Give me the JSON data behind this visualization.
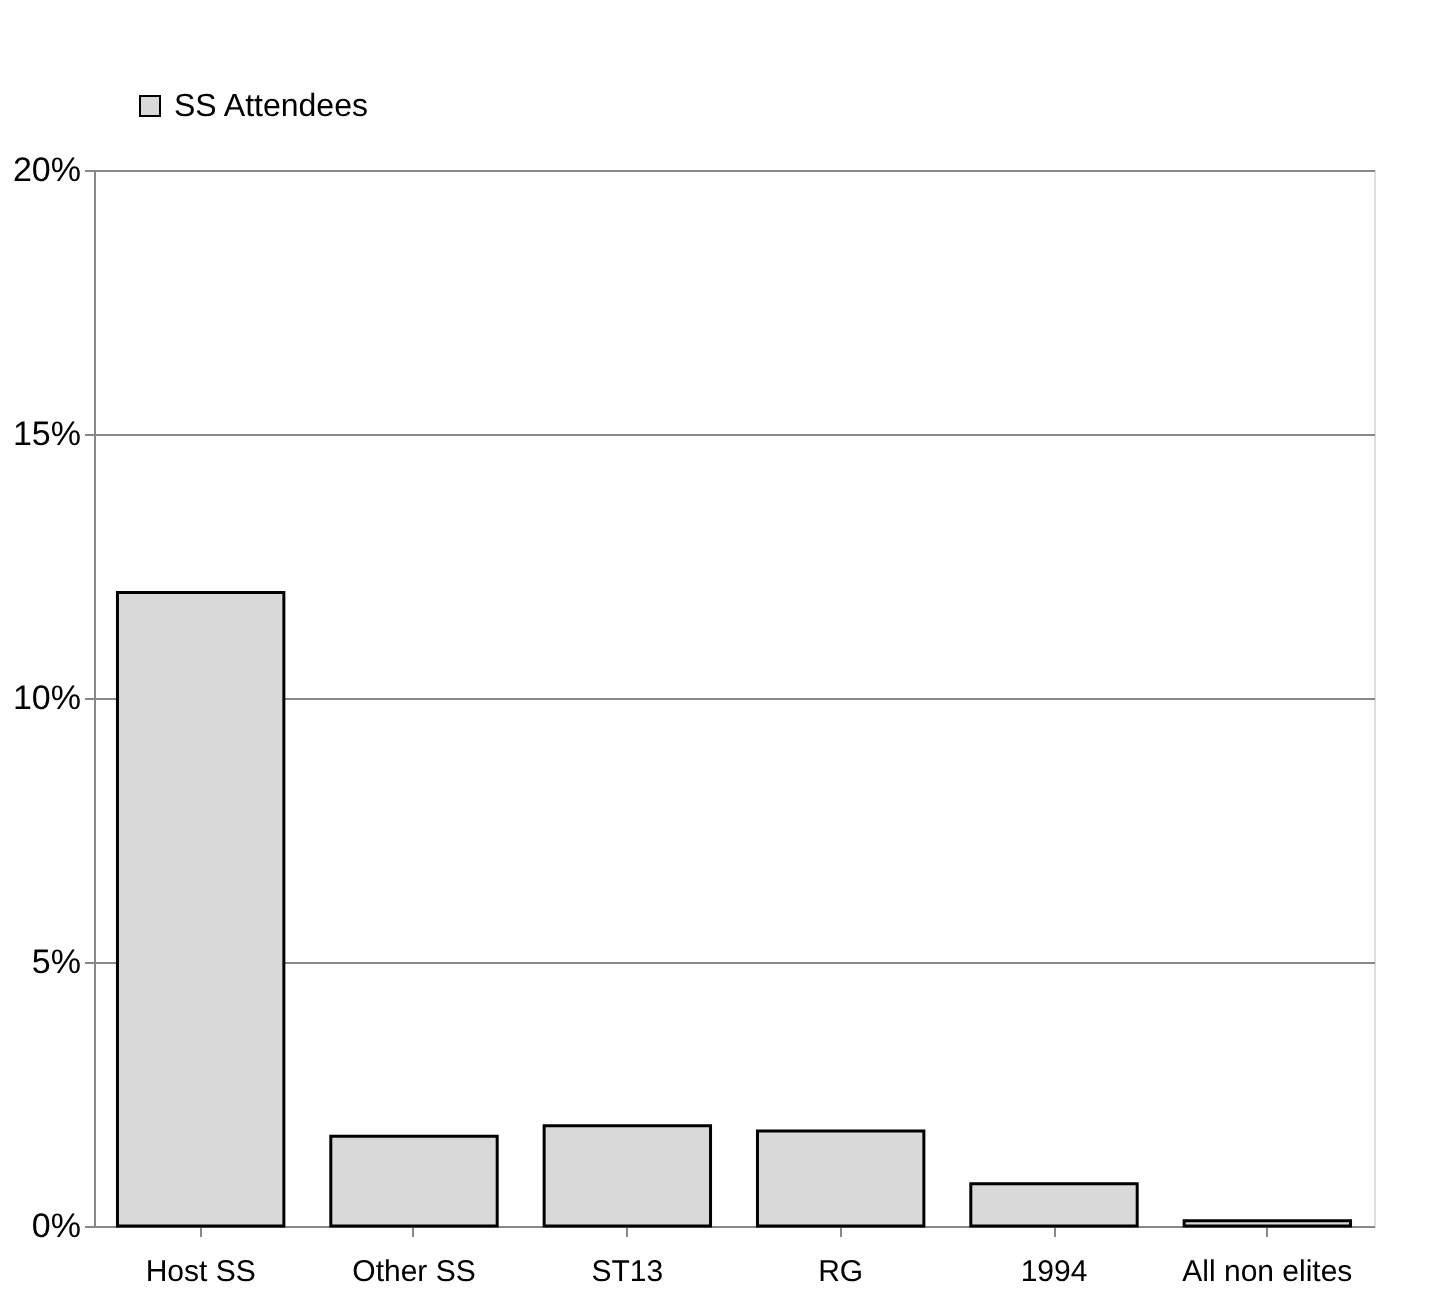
{
  "chart_data": {
    "type": "bar",
    "categories": [
      "Host SS",
      "Other SS",
      "ST13",
      "RG",
      "1994",
      "All non elites"
    ],
    "series": [
      {
        "name": "SS Attendees",
        "color": "#d9d9d9",
        "values": [
          12.0,
          1.7,
          1.9,
          1.8,
          0.8,
          0.1
        ]
      }
    ],
    "ylim": [
      0,
      20
    ],
    "yticks": [
      {
        "value": 0,
        "label": "0%"
      },
      {
        "value": 5,
        "label": "5%"
      },
      {
        "value": 10,
        "label": "10%"
      },
      {
        "value": 15,
        "label": "15%"
      },
      {
        "value": 20,
        "label": "20%"
      }
    ],
    "grid": "y",
    "legend": "top left"
  }
}
